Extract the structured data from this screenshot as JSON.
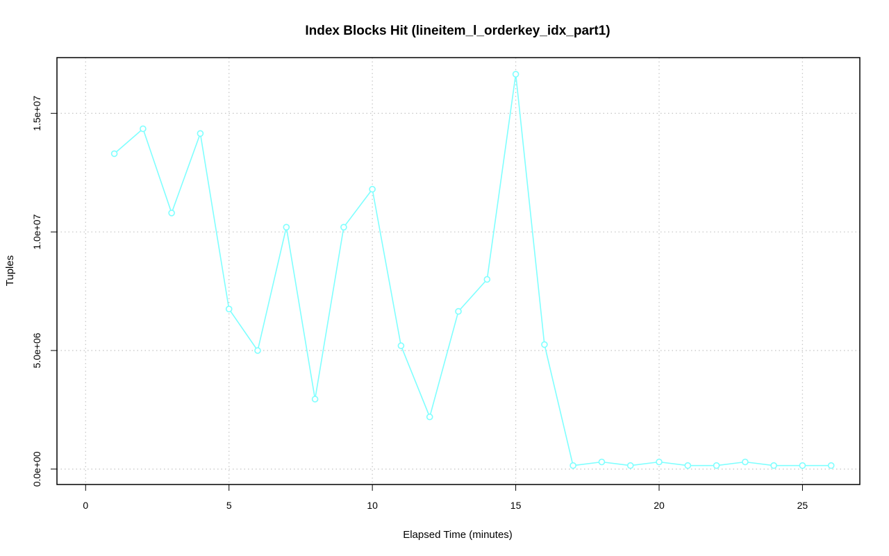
{
  "chart_data": {
    "type": "line",
    "title": "Index Blocks Hit (lineitem_l_orderkey_idx_part1)",
    "xlabel": "Elapsed Time (minutes)",
    "ylabel": "Tuples",
    "xlim": [
      -1,
      27
    ],
    "ylim": [
      -650000,
      17350000
    ],
    "x_ticks": [
      0,
      5,
      10,
      15,
      20,
      25
    ],
    "x_tick_labels": [
      "0",
      "5",
      "10",
      "15",
      "20",
      "25"
    ],
    "y_ticks": [
      0,
      5000000,
      10000000,
      15000000
    ],
    "y_tick_labels": [
      "0.0e+00",
      "5.0e+06",
      "1.0e+07",
      "1.5e+07"
    ],
    "grid": true,
    "series": [
      {
        "color": "#7fffff",
        "x": [
          1,
          2,
          3,
          4,
          5,
          6,
          7,
          8,
          9,
          10,
          11,
          12,
          13,
          14,
          15,
          16,
          17,
          18,
          19,
          20,
          21,
          22,
          23,
          24,
          25,
          26
        ],
        "y": [
          13300000,
          14350000,
          10800000,
          14150000,
          6750000,
          5000000,
          10200000,
          2950000,
          10200000,
          11800000,
          5200000,
          2200000,
          6650000,
          8000000,
          16650000,
          5250000,
          150000,
          300000,
          150000,
          300000,
          150000,
          150000,
          300000,
          150000,
          150000,
          150000
        ]
      }
    ]
  }
}
